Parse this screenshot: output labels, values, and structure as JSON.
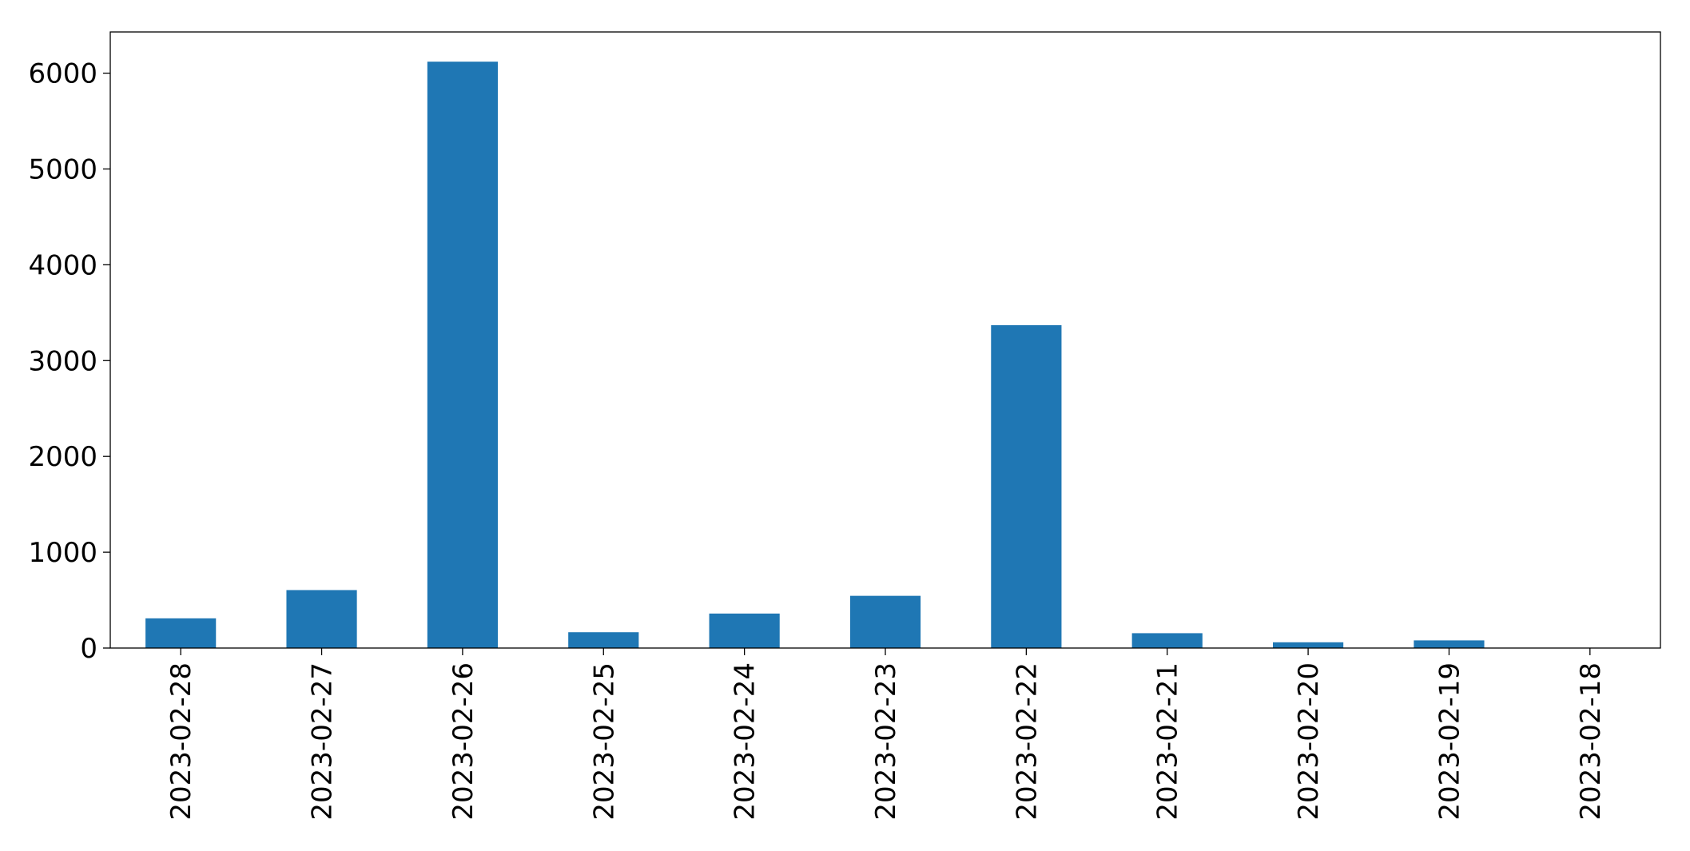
{
  "chart_data": {
    "type": "bar",
    "categories": [
      "2023-02-28",
      "2023-02-27",
      "2023-02-26",
      "2023-02-25",
      "2023-02-24",
      "2023-02-23",
      "2023-02-22",
      "2023-02-21",
      "2023-02-20",
      "2023-02-19",
      "2023-02-18"
    ],
    "values": [
      310,
      605,
      6120,
      165,
      360,
      545,
      3370,
      155,
      60,
      80,
      0
    ],
    "title": "",
    "xlabel": "",
    "ylabel": "",
    "ylim": [
      0,
      6430
    ],
    "yticks": [
      0,
      1000,
      2000,
      3000,
      4000,
      5000,
      6000
    ],
    "grid": false,
    "bar_color": "#1f77b4"
  }
}
